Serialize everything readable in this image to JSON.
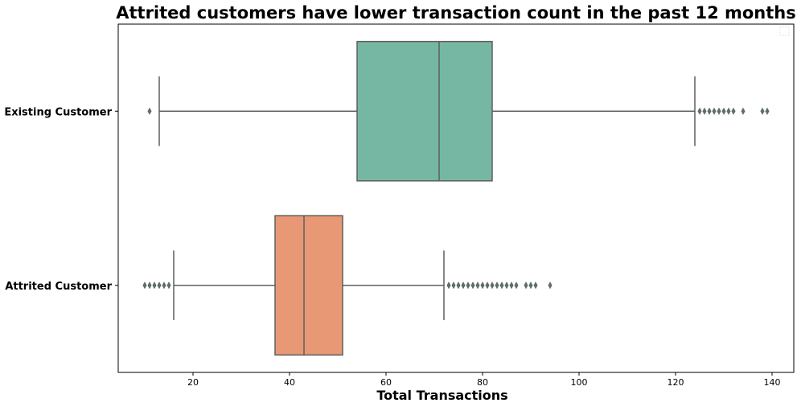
{
  "chart_data": {
    "type": "boxplot",
    "orientation": "horizontal",
    "title": "Attrited customers have lower transaction count in the past 12 months",
    "xlabel": "Total Transactions",
    "ylabel": "",
    "xlim": [
      4.5,
      144.5
    ],
    "xticks": [
      20,
      40,
      60,
      80,
      100,
      120,
      140
    ],
    "grid": false,
    "legend": "top-right (empty)",
    "categories": [
      "Existing Customer",
      "Attrited Customer"
    ],
    "series": [
      {
        "category": "Existing Customer",
        "color": "#76B7A3",
        "whisker_low": 13,
        "q1": 54,
        "median": 71,
        "q3": 82,
        "whisker_high": 124,
        "outliers": [
          11,
          125,
          126,
          127,
          128,
          129,
          130,
          131,
          132,
          134,
          138,
          139
        ]
      },
      {
        "category": "Attrited Customer",
        "color": "#E89874",
        "whisker_low": 16,
        "q1": 37,
        "median": 43,
        "q3": 51,
        "whisker_high": 72,
        "outliers": [
          10,
          11,
          12,
          13,
          14,
          15,
          73,
          74,
          75,
          76,
          77,
          78,
          79,
          80,
          81,
          82,
          83,
          84,
          85,
          86,
          87,
          89,
          90,
          91,
          94
        ]
      }
    ],
    "line_color": "#5F5F5F",
    "outlier_color": "#5F6E6A"
  }
}
